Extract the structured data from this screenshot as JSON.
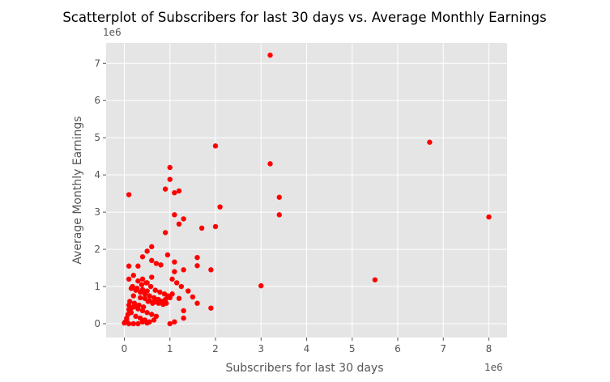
{
  "chart_data": {
    "type": "scatter",
    "title": "Scatterplot of Subscribers for last 30 days vs. Average Monthly  Earnings",
    "xlabel": "Subscribers for last 30 days",
    "ylabel": "Average Monthly Earnings",
    "x_offset_text": "1e6",
    "y_offset_text": "1e6",
    "xlim": [
      -0.4,
      8.4
    ],
    "ylim": [
      -0.37,
      7.55
    ],
    "x_ticks": [
      0,
      1,
      2,
      3,
      4,
      5,
      6,
      7,
      8
    ],
    "y_ticks": [
      0,
      1,
      2,
      3,
      4,
      5,
      6,
      7
    ],
    "grid": true,
    "colors": {
      "background": "#e5e5e5",
      "grid": "#ffffff",
      "point": "#ff0000"
    },
    "series": [
      {
        "x": [
          3.2,
          6.7,
          2.0,
          3.2,
          1.0,
          1.0,
          8.0,
          3.4,
          3.4,
          0.1,
          0.9,
          1.1,
          1.2,
          2.1,
          2.0,
          1.7,
          1.1,
          1.3,
          1.2,
          0.6,
          0.9,
          1.6,
          1.6,
          0.1,
          1.1,
          1.9,
          5.5,
          3.0,
          1.4,
          1.5,
          1.6,
          1.9,
          1.2,
          1.3,
          1.3,
          1.0,
          1.1,
          0.95,
          0.8,
          0.7,
          0.6,
          0.5,
          0.4,
          0.3,
          0.2,
          0.1,
          0.05,
          0.0,
          0.02,
          0.15,
          0.25,
          0.35,
          0.45,
          0.55,
          0.65,
          0.75,
          0.85,
          0.1,
          0.2,
          0.3,
          0.4,
          0.5,
          0.6,
          0.7,
          0.15,
          0.25,
          0.35,
          0.45,
          0.55,
          0.65,
          0.1,
          0.2,
          0.3,
          0.4,
          0.5,
          0.12,
          0.22,
          0.32,
          0.42,
          0.52,
          0.62,
          0.72,
          0.82,
          0.92,
          0.18,
          0.28,
          0.38,
          0.48,
          0.58,
          0.68,
          0.78,
          0.88,
          1.05,
          1.15,
          1.25,
          1.05,
          0.95,
          1.0,
          0.9,
          0.08,
          0.12,
          0.05,
          0.3,
          0.4,
          0.5,
          0.6,
          0.2,
          0.35,
          0.45,
          0.55,
          0.65,
          0.75,
          0.85,
          0.25,
          0.15,
          0.1,
          1.1,
          1.3,
          0.4,
          0.5
        ],
        "y": [
          7.22,
          4.88,
          4.78,
          4.3,
          4.2,
          3.88,
          2.87,
          3.4,
          2.93,
          3.47,
          3.62,
          3.52,
          3.57,
          3.14,
          2.61,
          2.57,
          2.93,
          2.82,
          2.68,
          2.07,
          2.45,
          1.78,
          1.56,
          1.55,
          1.66,
          1.45,
          1.18,
          1.02,
          0.88,
          0.72,
          0.55,
          0.42,
          0.68,
          0.35,
          0.15,
          0.0,
          0.05,
          1.85,
          1.58,
          1.62,
          1.7,
          1.95,
          1.8,
          1.55,
          1.3,
          1.2,
          0.1,
          0.02,
          0.05,
          0.95,
          0.9,
          0.85,
          0.8,
          0.75,
          0.7,
          0.65,
          0.6,
          0.5,
          0.45,
          0.4,
          0.35,
          0.3,
          0.25,
          0.2,
          0.3,
          0.2,
          0.15,
          0.1,
          0.05,
          0.1,
          0.0,
          0.0,
          0.0,
          0.05,
          0.02,
          0.6,
          0.55,
          0.5,
          0.45,
          0.6,
          0.55,
          0.65,
          0.6,
          0.55,
          1.0,
          0.95,
          1.05,
          1.1,
          1.0,
          0.9,
          0.85,
          0.8,
          1.2,
          1.1,
          1.0,
          0.8,
          0.75,
          0.7,
          0.65,
          0.25,
          0.35,
          0.15,
          1.15,
          1.2,
          1.1,
          1.25,
          0.75,
          0.7,
          0.68,
          0.62,
          0.58,
          0.55,
          0.52,
          0.48,
          0.42,
          0.38,
          1.4,
          1.45,
          0.92,
          0.88
        ]
      }
    ]
  }
}
